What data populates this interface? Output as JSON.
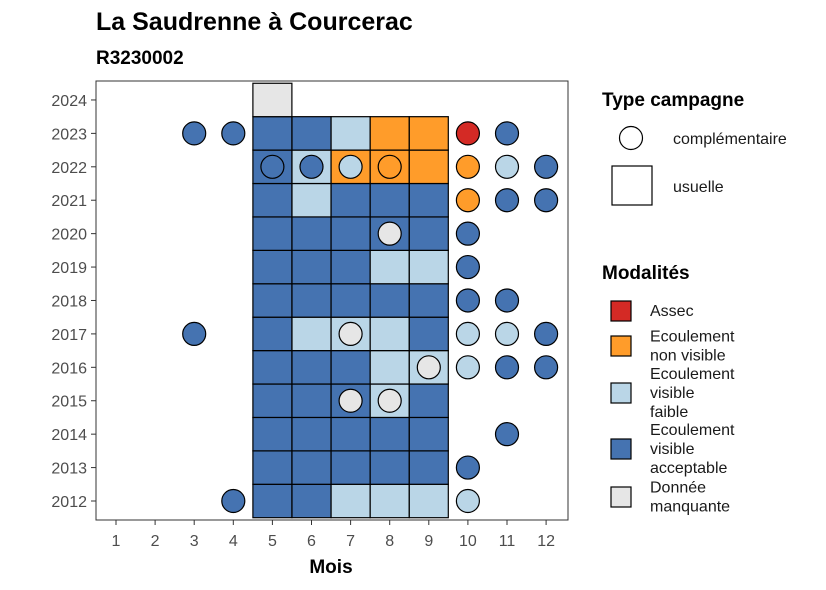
{
  "chart_data": {
    "type": "heatmap",
    "title": "La Saudrenne à Courcerac",
    "subtitle": "R3230002",
    "xlabel": "Mois",
    "ylabel": "",
    "x_ticks": [
      "1",
      "2",
      "3",
      "4",
      "5",
      "6",
      "7",
      "8",
      "9",
      "10",
      "11",
      "12"
    ],
    "y_ticks": [
      "2012",
      "2013",
      "2014",
      "2015",
      "2016",
      "2017",
      "2018",
      "2019",
      "2020",
      "2021",
      "2022",
      "2023",
      "2024"
    ],
    "grid": false,
    "legend_campagne": {
      "title": "Type campagne",
      "items": [
        {
          "label": "complémentaire",
          "shape": "circle"
        },
        {
          "label": "usuelle",
          "shape": "square"
        }
      ]
    },
    "legend_modalites": {
      "title": "Modalités",
      "items": [
        {
          "key": "assec",
          "lines": [
            "Assec"
          ],
          "color": "#d42a25"
        },
        {
          "key": "nonvisible",
          "lines": [
            "Ecoulement",
            "non visible"
          ],
          "color": "#ff9c2a"
        },
        {
          "key": "faible",
          "lines": [
            "Ecoulement",
            "visible",
            "faible"
          ],
          "color": "#bad6e7"
        },
        {
          "key": "acceptable",
          "lines": [
            "Ecoulement",
            "visible",
            "acceptable"
          ],
          "color": "#4573b1"
        },
        {
          "key": "manquante",
          "lines": [
            "Donnée",
            "manquante"
          ],
          "color": "#e6e6e6"
        }
      ]
    },
    "usuelle": [
      {
        "year": 2012,
        "month": 5,
        "v": "acceptable"
      },
      {
        "year": 2012,
        "month": 6,
        "v": "acceptable"
      },
      {
        "year": 2012,
        "month": 7,
        "v": "faible"
      },
      {
        "year": 2012,
        "month": 8,
        "v": "faible"
      },
      {
        "year": 2012,
        "month": 9,
        "v": "faible"
      },
      {
        "year": 2013,
        "month": 5,
        "v": "acceptable"
      },
      {
        "year": 2013,
        "month": 6,
        "v": "acceptable"
      },
      {
        "year": 2013,
        "month": 7,
        "v": "acceptable"
      },
      {
        "year": 2013,
        "month": 8,
        "v": "acceptable"
      },
      {
        "year": 2013,
        "month": 9,
        "v": "acceptable"
      },
      {
        "year": 2014,
        "month": 5,
        "v": "acceptable"
      },
      {
        "year": 2014,
        "month": 6,
        "v": "acceptable"
      },
      {
        "year": 2014,
        "month": 7,
        "v": "acceptable"
      },
      {
        "year": 2014,
        "month": 8,
        "v": "acceptable"
      },
      {
        "year": 2014,
        "month": 9,
        "v": "acceptable"
      },
      {
        "year": 2015,
        "month": 5,
        "v": "acceptable"
      },
      {
        "year": 2015,
        "month": 6,
        "v": "acceptable"
      },
      {
        "year": 2015,
        "month": 7,
        "v": "acceptable"
      },
      {
        "year": 2015,
        "month": 8,
        "v": "faible"
      },
      {
        "year": 2015,
        "month": 9,
        "v": "acceptable"
      },
      {
        "year": 2016,
        "month": 5,
        "v": "acceptable"
      },
      {
        "year": 2016,
        "month": 6,
        "v": "acceptable"
      },
      {
        "year": 2016,
        "month": 7,
        "v": "acceptable"
      },
      {
        "year": 2016,
        "month": 8,
        "v": "faible"
      },
      {
        "year": 2016,
        "month": 9,
        "v": "faible"
      },
      {
        "year": 2017,
        "month": 5,
        "v": "acceptable"
      },
      {
        "year": 2017,
        "month": 6,
        "v": "faible"
      },
      {
        "year": 2017,
        "month": 7,
        "v": "faible"
      },
      {
        "year": 2017,
        "month": 8,
        "v": "faible"
      },
      {
        "year": 2017,
        "month": 9,
        "v": "acceptable"
      },
      {
        "year": 2018,
        "month": 5,
        "v": "acceptable"
      },
      {
        "year": 2018,
        "month": 6,
        "v": "acceptable"
      },
      {
        "year": 2018,
        "month": 7,
        "v": "acceptable"
      },
      {
        "year": 2018,
        "month": 8,
        "v": "acceptable"
      },
      {
        "year": 2018,
        "month": 9,
        "v": "acceptable"
      },
      {
        "year": 2019,
        "month": 5,
        "v": "acceptable"
      },
      {
        "year": 2019,
        "month": 6,
        "v": "acceptable"
      },
      {
        "year": 2019,
        "month": 7,
        "v": "acceptable"
      },
      {
        "year": 2019,
        "month": 8,
        "v": "faible"
      },
      {
        "year": 2019,
        "month": 9,
        "v": "faible"
      },
      {
        "year": 2020,
        "month": 5,
        "v": "acceptable"
      },
      {
        "year": 2020,
        "month": 6,
        "v": "acceptable"
      },
      {
        "year": 2020,
        "month": 7,
        "v": "acceptable"
      },
      {
        "year": 2020,
        "month": 8,
        "v": "acceptable"
      },
      {
        "year": 2020,
        "month": 9,
        "v": "acceptable"
      },
      {
        "year": 2021,
        "month": 5,
        "v": "acceptable"
      },
      {
        "year": 2021,
        "month": 6,
        "v": "faible"
      },
      {
        "year": 2021,
        "month": 7,
        "v": "acceptable"
      },
      {
        "year": 2021,
        "month": 8,
        "v": "acceptable"
      },
      {
        "year": 2021,
        "month": 9,
        "v": "acceptable"
      },
      {
        "year": 2022,
        "month": 5,
        "v": "acceptable"
      },
      {
        "year": 2022,
        "month": 6,
        "v": "faible"
      },
      {
        "year": 2022,
        "month": 7,
        "v": "nonvisible"
      },
      {
        "year": 2022,
        "month": 8,
        "v": "nonvisible"
      },
      {
        "year": 2022,
        "month": 9,
        "v": "nonvisible"
      },
      {
        "year": 2023,
        "month": 5,
        "v": "acceptable"
      },
      {
        "year": 2023,
        "month": 6,
        "v": "acceptable"
      },
      {
        "year": 2023,
        "month": 7,
        "v": "faible"
      },
      {
        "year": 2023,
        "month": 8,
        "v": "nonvisible"
      },
      {
        "year": 2023,
        "month": 9,
        "v": "nonvisible"
      },
      {
        "year": 2024,
        "month": 5,
        "v": "manquante"
      }
    ],
    "complementaire": [
      {
        "year": 2012,
        "month": 4,
        "v": "acceptable"
      },
      {
        "year": 2012,
        "month": 10,
        "v": "faible"
      },
      {
        "year": 2013,
        "month": 10,
        "v": "acceptable"
      },
      {
        "year": 2014,
        "month": 11,
        "v": "acceptable"
      },
      {
        "year": 2015,
        "month": 7,
        "v": "manquante"
      },
      {
        "year": 2015,
        "month": 8,
        "v": "manquante"
      },
      {
        "year": 2016,
        "month": 9,
        "v": "manquante"
      },
      {
        "year": 2016,
        "month": 10,
        "v": "faible"
      },
      {
        "year": 2016,
        "month": 11,
        "v": "acceptable"
      },
      {
        "year": 2016,
        "month": 12,
        "v": "acceptable"
      },
      {
        "year": 2017,
        "month": 3,
        "v": "acceptable"
      },
      {
        "year": 2017,
        "month": 7,
        "v": "manquante"
      },
      {
        "year": 2017,
        "month": 10,
        "v": "faible"
      },
      {
        "year": 2017,
        "month": 11,
        "v": "faible"
      },
      {
        "year": 2017,
        "month": 12,
        "v": "acceptable"
      },
      {
        "year": 2018,
        "month": 10,
        "v": "acceptable"
      },
      {
        "year": 2018,
        "month": 11,
        "v": "acceptable"
      },
      {
        "year": 2019,
        "month": 10,
        "v": "acceptable"
      },
      {
        "year": 2020,
        "month": 8,
        "v": "manquante"
      },
      {
        "year": 2020,
        "month": 10,
        "v": "acceptable"
      },
      {
        "year": 2021,
        "month": 10,
        "v": "nonvisible"
      },
      {
        "year": 2021,
        "month": 11,
        "v": "acceptable"
      },
      {
        "year": 2021,
        "month": 12,
        "v": "acceptable"
      },
      {
        "year": 2022,
        "month": 5,
        "v": "acceptable"
      },
      {
        "year": 2022,
        "month": 6,
        "v": "acceptable"
      },
      {
        "year": 2022,
        "month": 7,
        "v": "faible"
      },
      {
        "year": 2022,
        "month": 8,
        "v": "nonvisible"
      },
      {
        "year": 2022,
        "month": 10,
        "v": "nonvisible"
      },
      {
        "year": 2022,
        "month": 11,
        "v": "faible"
      },
      {
        "year": 2022,
        "month": 12,
        "v": "acceptable"
      },
      {
        "year": 2023,
        "month": 3,
        "v": "acceptable"
      },
      {
        "year": 2023,
        "month": 4,
        "v": "acceptable"
      },
      {
        "year": 2023,
        "month": 10,
        "v": "assec"
      },
      {
        "year": 2023,
        "month": 11,
        "v": "acceptable"
      }
    ]
  }
}
